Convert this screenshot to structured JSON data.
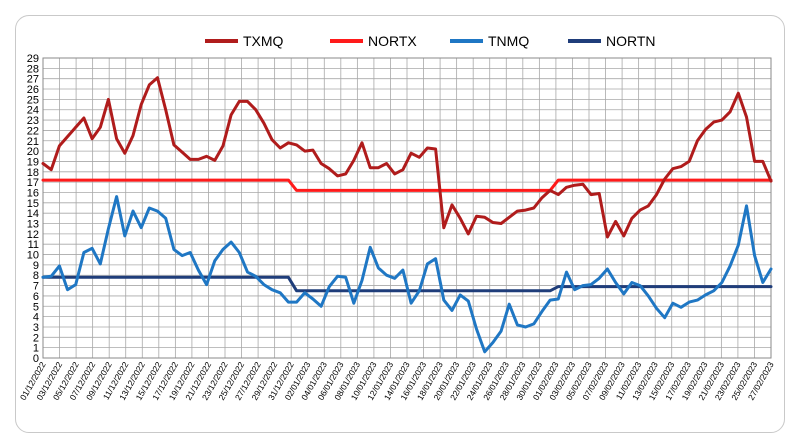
{
  "chart_data": {
    "type": "line",
    "title": "",
    "xlabel": "",
    "ylabel": "",
    "ylim": [
      0,
      29
    ],
    "yticks": [
      "0",
      "1",
      "2",
      "3",
      "4",
      "5",
      "6",
      "7",
      "8",
      "9",
      "10",
      "11",
      "12",
      "13",
      "14",
      "15",
      "16",
      "17",
      "18",
      "19",
      "20",
      "21",
      "22",
      "23",
      "24",
      "25",
      "26",
      "27",
      "28",
      "29"
    ],
    "x_tick_labels": [
      "01/12/2022",
      "03/12/2022",
      "05/12/2022",
      "07/12/2022",
      "09/12/2022",
      "11/12/2022",
      "13/12/2022",
      "15/12/2022",
      "17/12/2022",
      "19/12/2022",
      "21/12/2022",
      "23/12/2022",
      "25/12/2022",
      "27/12/2022",
      "29/12/2022",
      "31/12/2022",
      "02/01/2023",
      "04/01/2023",
      "06/01/2023",
      "08/01/2023",
      "10/01/2023",
      "12/01/2023",
      "14/01/2023",
      "16/01/2023",
      "18/01/2023",
      "20/01/2023",
      "22/01/2023",
      "24/01/2023",
      "26/01/2023",
      "28/01/2023",
      "30/01/2023",
      "01/02/2023",
      "03/02/2023",
      "05/02/2023",
      "07/02/2023",
      "09/02/2023",
      "11/02/2023",
      "13/02/2023",
      "15/02/2023",
      "17/02/2023",
      "19/02/2023",
      "21/02/2023",
      "23/02/2023",
      "25/02/2023",
      "27/02/2023"
    ],
    "grid": true,
    "legend_position": "top",
    "series": [
      {
        "name": "TXMQ",
        "color": "#b01c1c",
        "values": [
          18.8,
          18.2,
          20.5,
          21.4,
          22.3,
          23.2,
          21.2,
          22.3,
          25.0,
          21.2,
          19.8,
          21.5,
          24.5,
          26.4,
          27.1,
          24.0,
          20.6,
          19.9,
          19.2,
          19.2,
          19.5,
          19.1,
          20.5,
          23.5,
          24.8,
          24.8,
          24.0,
          22.7,
          21.1,
          20.3,
          20.8,
          20.6,
          20.0,
          20.1,
          18.8,
          18.3,
          17.6,
          17.8,
          19.1,
          20.8,
          18.4,
          18.4,
          18.8,
          17.8,
          18.2,
          19.8,
          19.4,
          20.3,
          20.2,
          12.6,
          14.8,
          13.5,
          12.0,
          13.7,
          13.6,
          13.1,
          13.0,
          13.6,
          14.2,
          14.3,
          14.5,
          15.5,
          16.2,
          15.8,
          16.5,
          16.7,
          16.8,
          15.8,
          15.9,
          11.7,
          13.2,
          11.8,
          13.5,
          14.3,
          14.7,
          15.8,
          17.3,
          18.3,
          18.5,
          19.0,
          21.0,
          22.1,
          22.8,
          23.0,
          23.8,
          25.6,
          23.3,
          19.0,
          19.0,
          17.1
        ],
        "label_at_index": null
      },
      {
        "name": "NORTX",
        "color": "#ff1a1a",
        "values": [
          17.2,
          17.2,
          17.2,
          17.2,
          17.2,
          17.2,
          17.2,
          17.2,
          17.2,
          17.2,
          17.2,
          17.2,
          17.2,
          17.2,
          17.2,
          17.2,
          17.2,
          17.2,
          17.2,
          17.2,
          17.2,
          17.2,
          17.2,
          17.2,
          17.2,
          17.2,
          17.2,
          17.2,
          17.2,
          17.2,
          17.2,
          16.2,
          16.2,
          16.2,
          16.2,
          16.2,
          16.2,
          16.2,
          16.2,
          16.2,
          16.2,
          16.2,
          16.2,
          16.2,
          16.2,
          16.2,
          16.2,
          16.2,
          16.2,
          16.2,
          16.2,
          16.2,
          16.2,
          16.2,
          16.2,
          16.2,
          16.2,
          16.2,
          16.2,
          16.2,
          16.2,
          16.2,
          16.2,
          17.2,
          17.2,
          17.2,
          17.2,
          17.2,
          17.2,
          17.2,
          17.2,
          17.2,
          17.2,
          17.2,
          17.2,
          17.2,
          17.2,
          17.2,
          17.2,
          17.2,
          17.2,
          17.2,
          17.2,
          17.2,
          17.2,
          17.2,
          17.2,
          17.2,
          17.2,
          17.2
        ]
      },
      {
        "name": "TNMQ",
        "color": "#1f77c4",
        "values": [
          7.8,
          7.9,
          8.9,
          6.6,
          7.1,
          10.2,
          10.6,
          9.1,
          12.5,
          15.6,
          11.8,
          14.2,
          12.6,
          14.5,
          14.2,
          13.5,
          10.5,
          9.9,
          10.2,
          8.5,
          7.1,
          9.4,
          10.5,
          11.2,
          10.2,
          8.3,
          7.9,
          7.1,
          6.6,
          6.3,
          5.4,
          5.4,
          6.3,
          5.7,
          5.0,
          6.9,
          7.9,
          7.8,
          5.3,
          7.5,
          10.7,
          8.7,
          8.0,
          7.7,
          8.5,
          5.3,
          6.5,
          9.1,
          9.6,
          5.6,
          4.6,
          6.1,
          5.5,
          2.8,
          0.6,
          1.5,
          2.6,
          5.2,
          3.2,
          3.0,
          3.3,
          4.5,
          5.6,
          5.7,
          8.3,
          6.6,
          7.0,
          7.1,
          7.7,
          8.6,
          7.3,
          6.2,
          7.3,
          7.0,
          6.0,
          4.8,
          3.9,
          5.3,
          4.9,
          5.4,
          5.6,
          6.1,
          6.5,
          7.3,
          8.9,
          10.9,
          14.7,
          9.9,
          7.3,
          8.6
        ]
      },
      {
        "name": "NORTN",
        "color": "#1f3d7a",
        "values": [
          7.8,
          7.8,
          7.8,
          7.8,
          7.8,
          7.8,
          7.8,
          7.8,
          7.8,
          7.8,
          7.8,
          7.8,
          7.8,
          7.8,
          7.8,
          7.8,
          7.8,
          7.8,
          7.8,
          7.8,
          7.8,
          7.8,
          7.8,
          7.8,
          7.8,
          7.8,
          7.8,
          7.8,
          7.8,
          7.8,
          7.8,
          6.5,
          6.5,
          6.5,
          6.5,
          6.5,
          6.5,
          6.5,
          6.5,
          6.5,
          6.5,
          6.5,
          6.5,
          6.5,
          6.5,
          6.5,
          6.5,
          6.5,
          6.5,
          6.5,
          6.5,
          6.5,
          6.5,
          6.5,
          6.5,
          6.5,
          6.5,
          6.5,
          6.5,
          6.5,
          6.5,
          6.5,
          6.5,
          6.9,
          6.9,
          6.9,
          6.9,
          6.9,
          6.9,
          6.9,
          6.9,
          6.9,
          6.9,
          6.9,
          6.9,
          6.9,
          6.9,
          6.9,
          6.9,
          6.9,
          6.9,
          6.9,
          6.9,
          6.9,
          6.9,
          6.9,
          6.9,
          6.9,
          6.9,
          6.9
        ]
      }
    ]
  }
}
